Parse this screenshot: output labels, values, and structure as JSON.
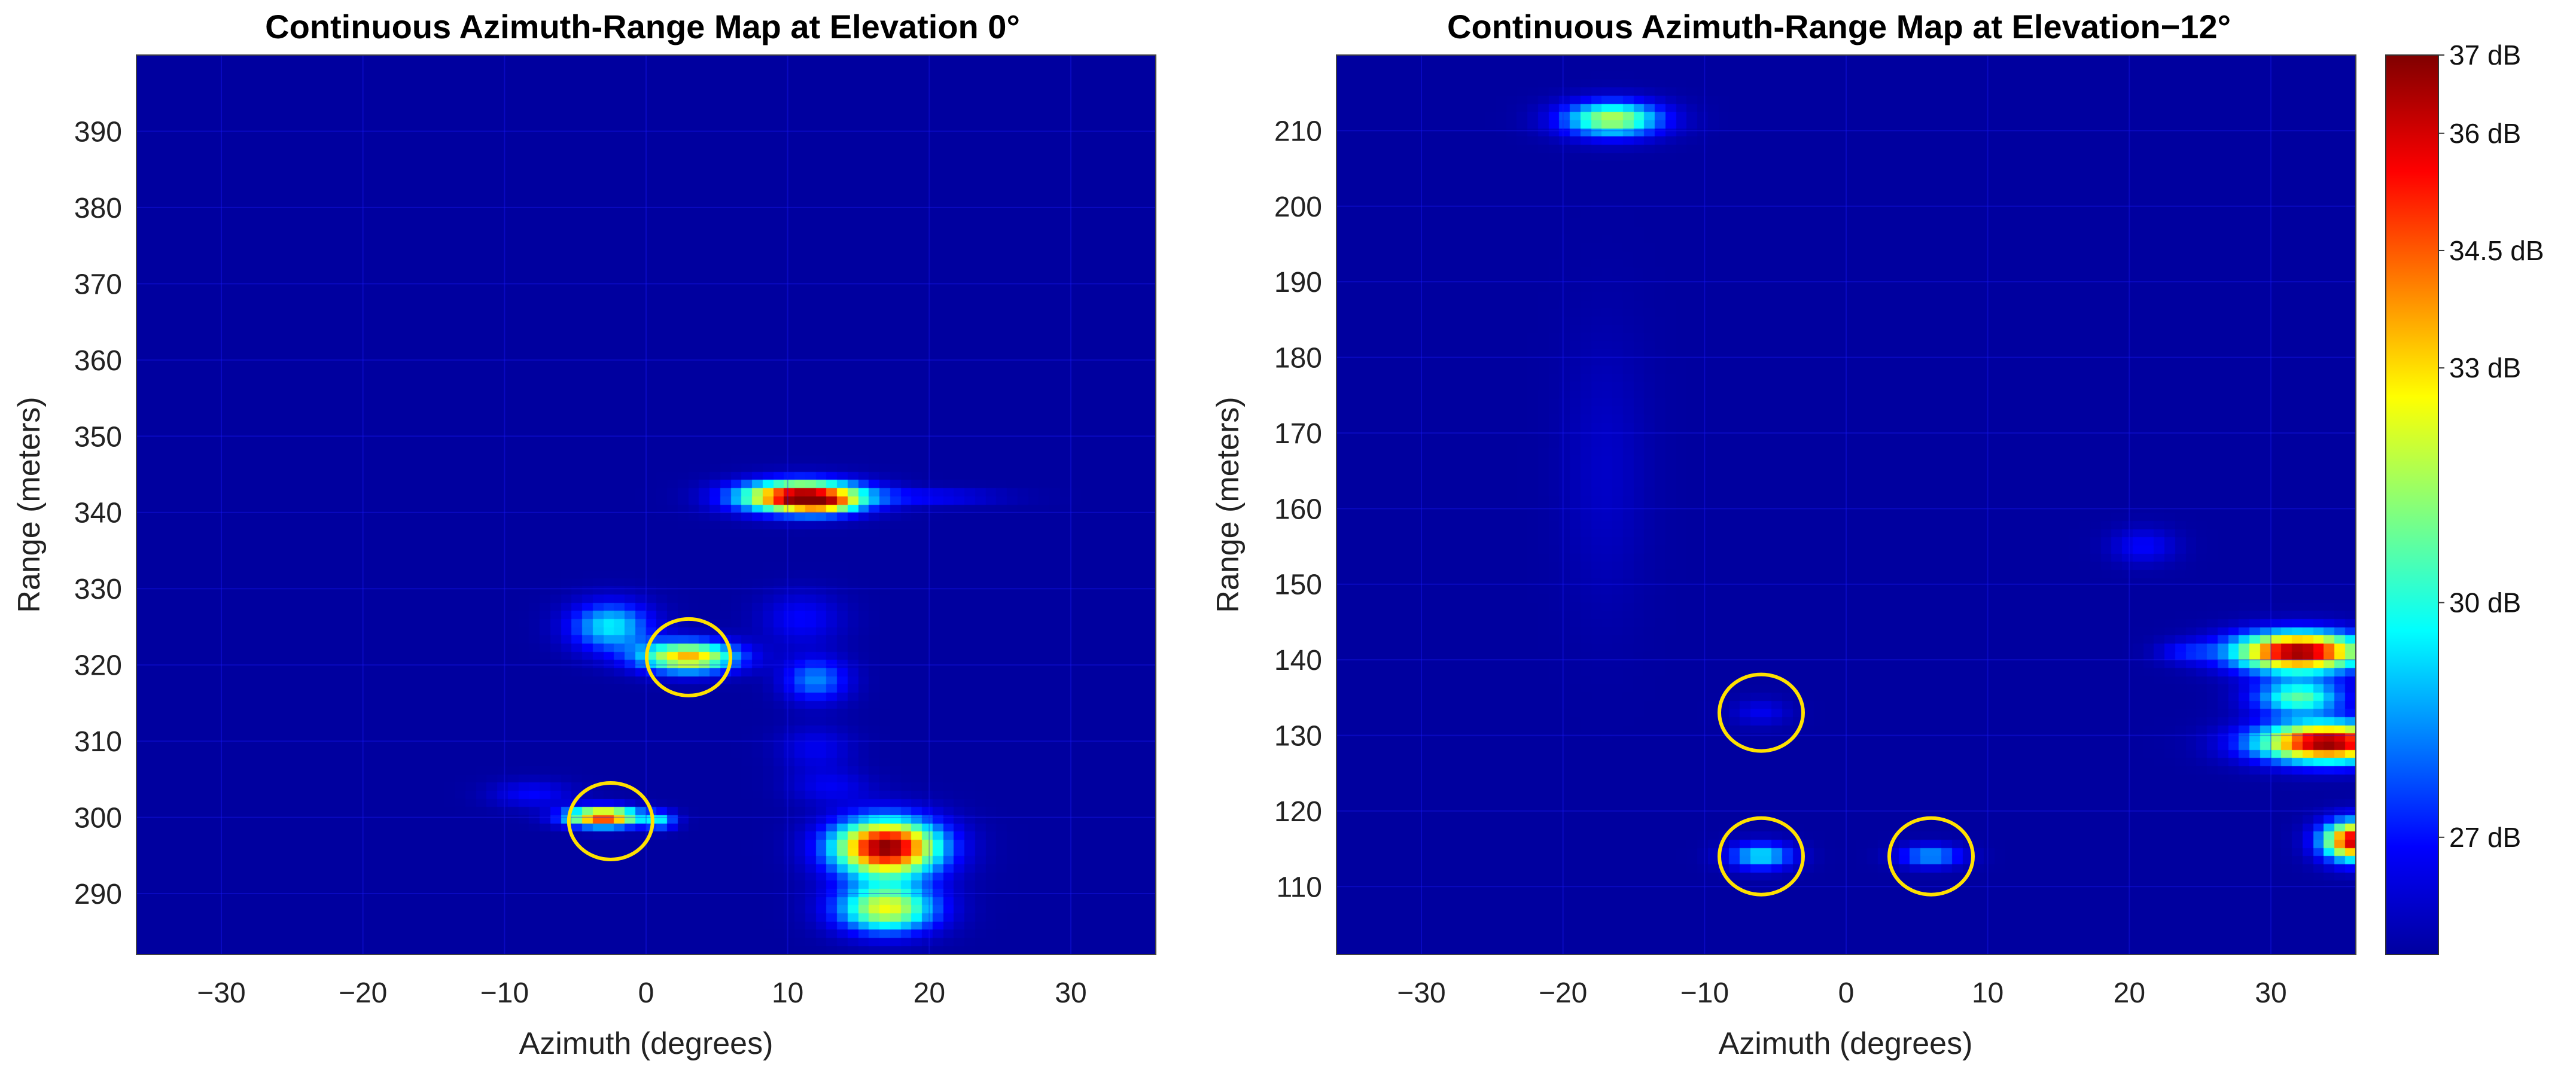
{
  "colors": {
    "background": "#00009f",
    "circle": "#ffe100",
    "axis_text": "#222222",
    "grid": "#1a1aff"
  },
  "chart_data": [
    {
      "type": "heatmap",
      "id": "left",
      "title": "Continuous Azimuth-Range Map at Elevation 0°",
      "xlabel": "Azimuth (degrees)",
      "ylabel": "Range (meters)",
      "xlim": [
        -36,
        36
      ],
      "ylim": [
        282,
        400
      ],
      "xticks": [
        -30,
        -20,
        -10,
        0,
        10,
        20,
        30
      ],
      "yticks": [
        290,
        300,
        310,
        320,
        330,
        340,
        350,
        360,
        370,
        380,
        390
      ],
      "tick_labels_x": [
        "−30",
        "−20",
        "−10",
        "0",
        "10",
        "20",
        "30"
      ],
      "tick_labels_y": [
        "290",
        "300",
        "310",
        "320",
        "330",
        "340",
        "350",
        "360",
        "370",
        "380",
        "390"
      ],
      "blobs": [
        {
          "az": 11,
          "range": 342,
          "saz": 3.0,
          "sr": 1.4,
          "intensity": 1.0
        },
        {
          "az": 12.5,
          "range": 341,
          "saz": 1.6,
          "sr": 0.9,
          "intensity": 0.25
        },
        {
          "az": 17,
          "range": 296,
          "saz": 2.6,
          "sr": 2.6,
          "intensity": 1.0
        },
        {
          "az": 17,
          "range": 288,
          "saz": 2.4,
          "sr": 2.2,
          "intensity": 0.6
        },
        {
          "az": 3,
          "range": 321,
          "saz": 2.4,
          "sr": 1.4,
          "intensity": 0.7
        },
        {
          "az": -2.5,
          "range": 325,
          "saz": 2.0,
          "sr": 2.2,
          "intensity": 0.35
        },
        {
          "az": -3,
          "range": 300,
          "saz": 1.8,
          "sr": 0.9,
          "intensity": 0.85
        },
        {
          "az": 1,
          "range": 299.5,
          "saz": 0.8,
          "sr": 0.8,
          "intensity": 0.3
        },
        {
          "az": 12,
          "range": 318,
          "saz": 1.6,
          "sr": 2.0,
          "intensity": 0.25
        },
        {
          "az": 11,
          "range": 326,
          "saz": 2.0,
          "sr": 2.4,
          "intensity": 0.12
        },
        {
          "az": 12,
          "range": 309,
          "saz": 1.8,
          "sr": 2.0,
          "intensity": 0.1
        },
        {
          "az": 13,
          "range": 304,
          "saz": 2.0,
          "sr": 1.6,
          "intensity": 0.1
        },
        {
          "az": -8,
          "range": 303,
          "saz": 2.0,
          "sr": 1.2,
          "intensity": 0.12
        },
        {
          "az": 20,
          "range": 342,
          "saz": 3.5,
          "sr": 0.7,
          "intensity": 0.12
        }
      ],
      "circles": [
        {
          "az": 3,
          "range": 321
        },
        {
          "az": -2.5,
          "range": 299.5
        }
      ]
    },
    {
      "type": "heatmap",
      "id": "right",
      "title": "Continuous Azimuth-Range Map at Elevation−12°",
      "xlabel": "Azimuth (degrees)",
      "ylabel": "Range (meters)",
      "xlim": [
        -36,
        36
      ],
      "ylim": [
        101,
        220
      ],
      "xticks": [
        -30,
        -20,
        -10,
        0,
        10,
        20,
        30
      ],
      "yticks": [
        110,
        120,
        130,
        140,
        150,
        160,
        170,
        180,
        190,
        200,
        210
      ],
      "tick_labels_x": [
        "−30",
        "−20",
        "−10",
        "0",
        "10",
        "20",
        "30"
      ],
      "tick_labels_y": [
        "110",
        "120",
        "130",
        "140",
        "150",
        "160",
        "170",
        "180",
        "190",
        "200",
        "210"
      ],
      "blobs": [
        {
          "az": -16.5,
          "range": 211.5,
          "saz": 2.4,
          "sr": 1.6,
          "intensity": 0.55
        },
        {
          "az": 32,
          "range": 141,
          "saz": 3.2,
          "sr": 1.8,
          "intensity": 1.0
        },
        {
          "az": 34,
          "range": 129,
          "saz": 3.4,
          "sr": 1.8,
          "intensity": 1.0
        },
        {
          "az": 36,
          "range": 116,
          "saz": 1.6,
          "sr": 1.8,
          "intensity": 0.95
        },
        {
          "az": 32,
          "range": 135,
          "saz": 2.2,
          "sr": 1.6,
          "intensity": 0.45
        },
        {
          "az": -6,
          "range": 114,
          "saz": 1.6,
          "sr": 1.2,
          "intensity": 0.35
        },
        {
          "az": 6,
          "range": 114,
          "saz": 1.6,
          "sr": 1.0,
          "intensity": 0.28
        },
        {
          "az": -6,
          "range": 133,
          "saz": 1.4,
          "sr": 1.2,
          "intensity": 0.1
        },
        {
          "az": 21,
          "range": 155,
          "saz": 1.6,
          "sr": 1.6,
          "intensity": 0.12
        },
        {
          "az": 24,
          "range": 141,
          "saz": 1.4,
          "sr": 1.0,
          "intensity": 0.12
        },
        {
          "az": -17,
          "range": 165,
          "saz": 2.0,
          "sr": 12,
          "intensity": 0.05
        }
      ],
      "circles": [
        {
          "az": -6,
          "range": 133
        },
        {
          "az": -6,
          "range": 114
        },
        {
          "az": 6,
          "range": 114
        }
      ]
    }
  ],
  "colorbar": {
    "min_db": 25.5,
    "max_db": 37,
    "labels": [
      {
        "value": 37,
        "text": "37 dB"
      },
      {
        "value": 36,
        "text": "36 dB"
      },
      {
        "value": 34.5,
        "text": "34.5 dB"
      },
      {
        "value": 33,
        "text": "33 dB"
      },
      {
        "value": 30,
        "text": "30 dB"
      },
      {
        "value": 27,
        "text": "27 dB"
      }
    ]
  }
}
